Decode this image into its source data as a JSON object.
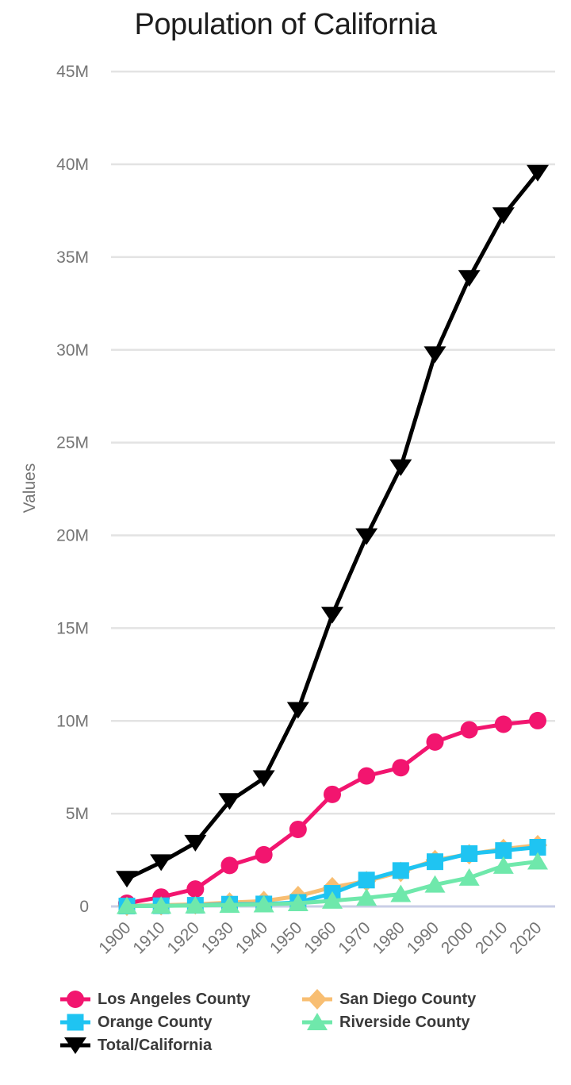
{
  "page": {
    "background": "#ffffff"
  },
  "chart_data": {
    "type": "line",
    "title": "Population of California",
    "xlabel": "",
    "ylabel": "Values",
    "x": [
      1900,
      1910,
      1920,
      1930,
      1940,
      1950,
      1960,
      1970,
      1980,
      1990,
      2000,
      2010,
      2020
    ],
    "x_tick_labels": [
      "1900",
      "1910",
      "1920",
      "1930",
      "1940",
      "1950",
      "1960",
      "1970",
      "1980",
      "1990",
      "2000",
      "2010",
      "2020"
    ],
    "y_tick_labels": [
      "0",
      "5M",
      "10M",
      "15M",
      "20M",
      "25M",
      "30M",
      "35M",
      "40M",
      "45M"
    ],
    "y_tick_values": [
      0,
      5000000,
      10000000,
      15000000,
      20000000,
      25000000,
      30000000,
      35000000,
      40000000,
      45000000
    ],
    "ylim": [
      0,
      45000000
    ],
    "grid": true,
    "legend_position": "bottom",
    "series": [
      {
        "name": "Los Angeles County",
        "marker": "circle",
        "color": "#F2156F",
        "values": [
          170298,
          504131,
          936455,
          2208492,
          2785643,
          4151687,
          6038771,
          7032075,
          7477503,
          8863164,
          9519338,
          9818605,
          10014009
        ]
      },
      {
        "name": "Orange County",
        "marker": "square",
        "color": "#1FC4F2",
        "values": [
          19696,
          34436,
          61375,
          118674,
          130760,
          216224,
          703925,
          1420386,
          1932709,
          2410556,
          2846289,
          3010232,
          3186989
        ]
      },
      {
        "name": "Total/California",
        "marker": "triangle-down",
        "color": "#000000",
        "values": [
          1485053,
          2377549,
          3426861,
          5677251,
          6907387,
          10586223,
          15717204,
          19953134,
          23667902,
          29760021,
          33871648,
          37253956,
          39538223
        ]
      },
      {
        "name": "San Diego County",
        "marker": "diamond",
        "color": "#F8BE72",
        "values": [
          35090,
          61665,
          112248,
          209659,
          289348,
          556808,
          1033011,
          1357854,
          1861846,
          2498016,
          2813833,
          3095313,
          3298634
        ]
      },
      {
        "name": "Riverside County",
        "marker": "triangle-up",
        "color": "#6FE8AB",
        "values": [
          17897,
          34696,
          50297,
          81024,
          105524,
          170046,
          306191,
          459074,
          663166,
          1170413,
          1545387,
          2189641,
          2418185
        ]
      }
    ],
    "draw_order": [
      "San Diego County",
      "Los Angeles County",
      "Orange County",
      "Riverside County",
      "Total/California"
    ],
    "colors": {
      "title_text": "#1d1d1d",
      "axis_text": "#757575",
      "grid_line": "#e3e3e3",
      "zero_line": "#c9cee6",
      "legend_text": "#3a3a3a"
    }
  }
}
